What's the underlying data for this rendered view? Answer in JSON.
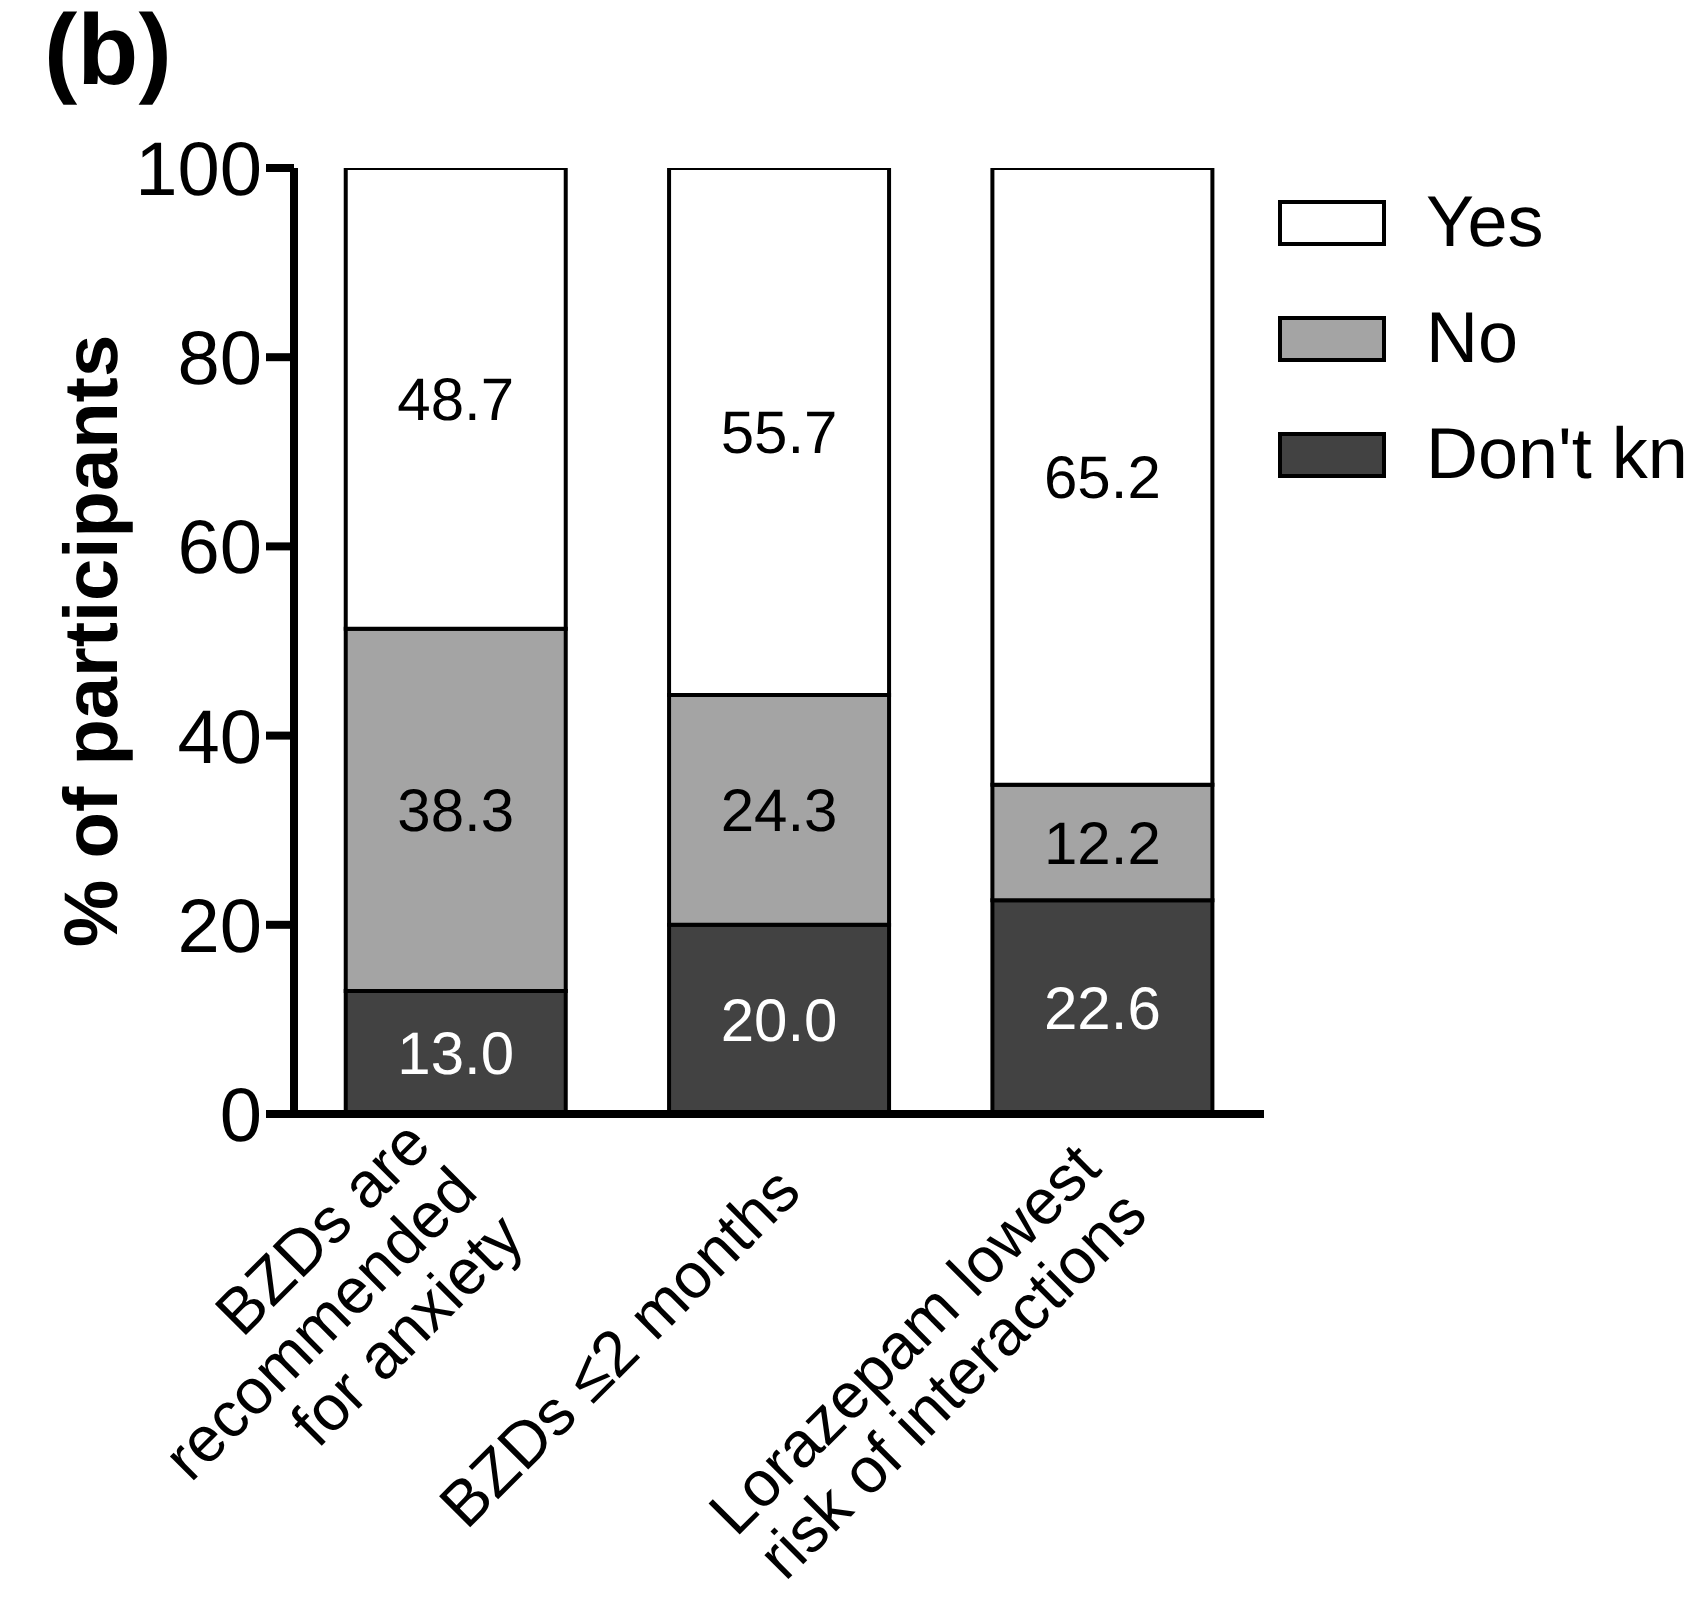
{
  "chart_data": {
    "type": "bar",
    "title": "(b)",
    "ylabel": "% of participants",
    "categories": [
      "BZDs are\nrecommended\nfor anxiety",
      "BZDs ≤2 months",
      "Lorazepam lowest\nrisk of interactions"
    ],
    "stacked": true,
    "ylim": [
      0,
      100
    ],
    "yticks": [
      0,
      20,
      40,
      60,
      80,
      100
    ],
    "legend": "top right",
    "series": [
      {
        "name": "Don't kn",
        "color": "#424242",
        "values": [
          13.0,
          20.0,
          22.6
        ],
        "value_labels": [
          "13.0",
          "20.0",
          "22.6"
        ]
      },
      {
        "name": "No",
        "color": "#a4a4a4",
        "values": [
          38.3,
          24.3,
          12.2
        ],
        "value_labels": [
          "38.3",
          "24.3",
          "12.2"
        ]
      },
      {
        "name": "Yes",
        "color": "#ffffff",
        "values": [
          48.7,
          55.7,
          65.2
        ],
        "value_labels": [
          "48.7",
          "55.7",
          "65.2"
        ]
      }
    ]
  }
}
